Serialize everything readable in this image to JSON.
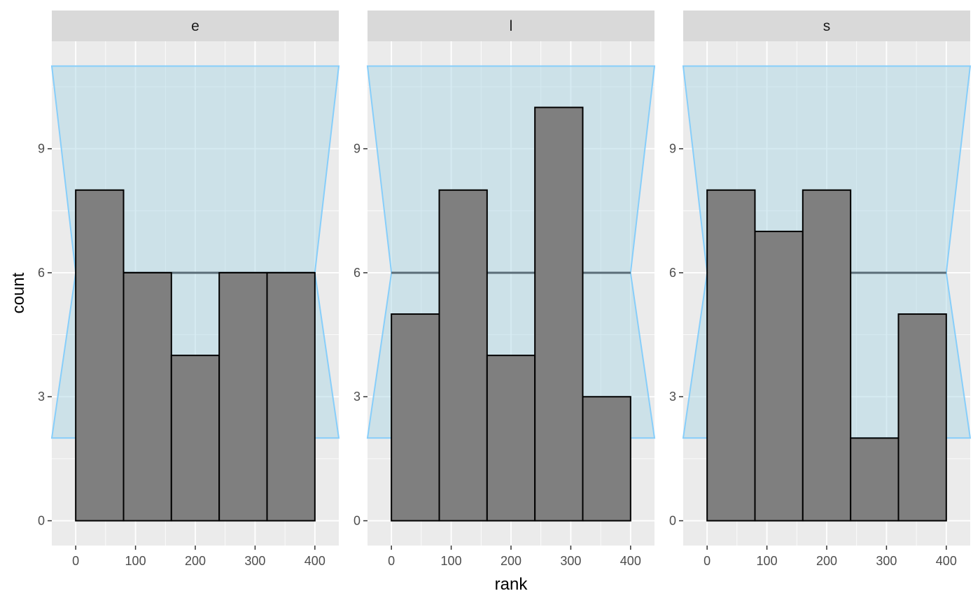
{
  "chart_data": {
    "type": "bar",
    "subtype": "faceted histogram with confidence band",
    "xlabel": "rank",
    "ylabel": "count",
    "xlim": [
      -40,
      440
    ],
    "ylim": [
      -0.6,
      11.6
    ],
    "x_ticks": [
      0,
      100,
      200,
      300,
      400
    ],
    "y_ticks": [
      0,
      3,
      6,
      9
    ],
    "bins": [
      [
        0,
        80
      ],
      [
        80,
        160
      ],
      [
        160,
        240
      ],
      [
        240,
        320
      ],
      [
        320,
        400
      ]
    ],
    "expected_count": 6,
    "band": {
      "x_range": [
        -40,
        440
      ],
      "outer_low": 2,
      "outer_high": 11,
      "pinch_at": [
        0,
        400
      ],
      "fill_color": "#ADD8E6",
      "edge_color": "#87CEFA"
    },
    "panels": [
      {
        "facet": "e",
        "counts": [
          8,
          6,
          4,
          6,
          6
        ]
      },
      {
        "facet": "l",
        "counts": [
          5,
          8,
          4,
          10,
          3
        ]
      },
      {
        "facet": "s",
        "counts": [
          8,
          7,
          8,
          2,
          5
        ]
      }
    ],
    "colors": {
      "bar_fill": "#7F7F7F",
      "bar_stroke": "#000000",
      "panel_bg": "#EBEBEB",
      "strip_bg": "#D9D9D9",
      "grid": "#FFFFFF",
      "expected_line": "#5A6D78"
    },
    "grid": true,
    "legend": "none"
  }
}
